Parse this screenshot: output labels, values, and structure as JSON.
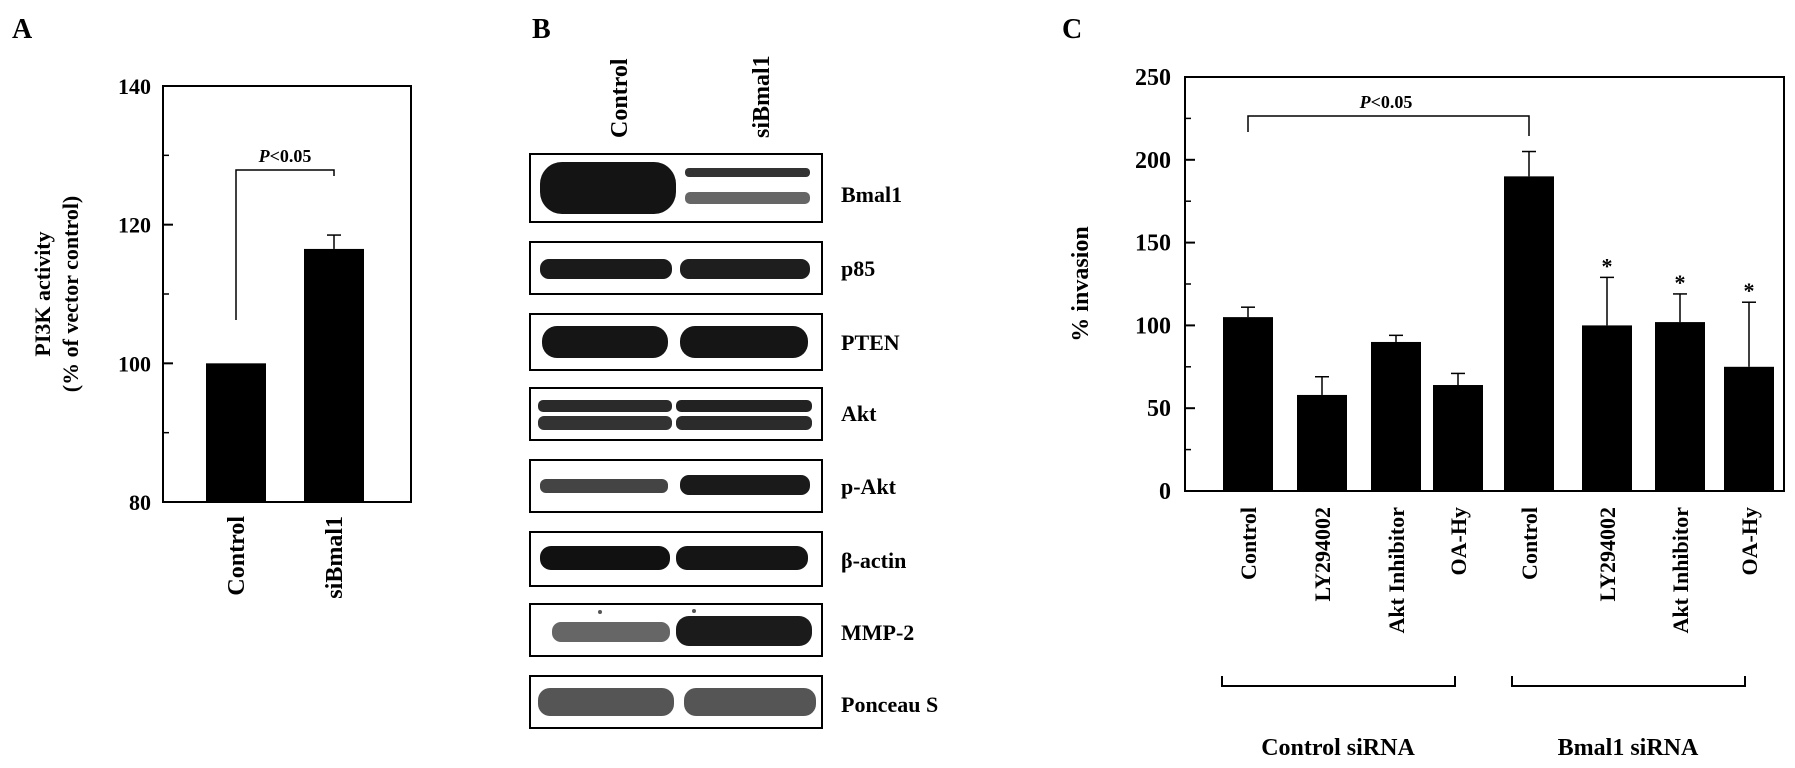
{
  "panels": {
    "a": {
      "letter": "A",
      "ylabel_line1": "PI3K activity",
      "ylabel_line2": "(% of vector control)",
      "ticks": [
        "80",
        "100",
        "120",
        "140"
      ],
      "sig": "P<0.05"
    },
    "b": {
      "letter": "B",
      "lane_labels": [
        "Control",
        "siBmal1"
      ],
      "blots": [
        "Bmal1",
        "p85",
        "PTEN",
        "Akt",
        "p-Akt",
        "β-actin",
        "MMP-2",
        "Ponceau S"
      ]
    },
    "c": {
      "letter": "C",
      "ylabel": "% invasion",
      "ticks": [
        "0",
        "50",
        "100",
        "150",
        "200",
        "250"
      ],
      "sig": "P<0.05",
      "star": "*",
      "groups": [
        "Control siRNA",
        "Bmal1 siRNA"
      ]
    }
  },
  "chart_data": [
    {
      "type": "bar",
      "categories": [
        "Control",
        "siBmal1"
      ],
      "values": [
        100,
        116.5
      ],
      "errors": [
        0,
        2
      ],
      "ylabel": "PI3K activity (% of vector control)",
      "ylim": [
        80,
        140
      ],
      "annotation": "P<0.05"
    },
    {
      "type": "bar",
      "categories": [
        "Control",
        "LY294002",
        "Akt Inhibitor",
        "OA-Hy",
        "Control",
        "LY294002",
        "Akt Inhibitor",
        "OA-Hy"
      ],
      "groups": [
        "Control siRNA",
        "Control siRNA",
        "Control siRNA",
        "Control siRNA",
        "Bmal1 siRNA",
        "Bmal1 siRNA",
        "Bmal1 siRNA",
        "Bmal1 siRNA"
      ],
      "values": [
        105,
        58,
        90,
        64,
        190,
        100,
        102,
        75
      ],
      "errors": [
        6,
        11,
        4,
        7,
        15,
        29,
        17,
        39
      ],
      "significant": [
        false,
        false,
        false,
        false,
        false,
        true,
        true,
        true
      ],
      "ylabel": "% invasion",
      "ylim": [
        0,
        250
      ],
      "annotation": "P<0.05"
    }
  ]
}
